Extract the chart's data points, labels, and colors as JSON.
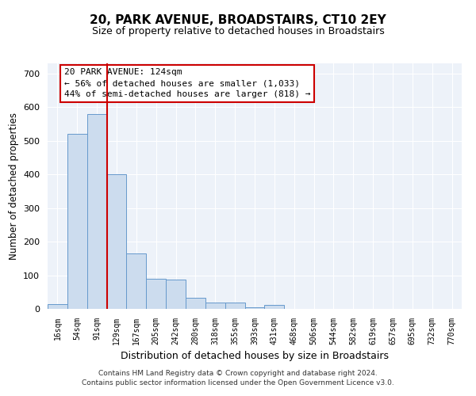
{
  "title": "20, PARK AVENUE, BROADSTAIRS, CT10 2EY",
  "subtitle": "Size of property relative to detached houses in Broadstairs",
  "xlabel": "Distribution of detached houses by size in Broadstairs",
  "ylabel": "Number of detached properties",
  "bin_labels": [
    "16sqm",
    "54sqm",
    "91sqm",
    "129sqm",
    "167sqm",
    "205sqm",
    "242sqm",
    "280sqm",
    "318sqm",
    "355sqm",
    "393sqm",
    "431sqm",
    "468sqm",
    "506sqm",
    "544sqm",
    "582sqm",
    "619sqm",
    "657sqm",
    "695sqm",
    "732sqm",
    "770sqm"
  ],
  "bar_heights": [
    15,
    520,
    580,
    400,
    165,
    90,
    87,
    33,
    18,
    20,
    5,
    12,
    0,
    0,
    0,
    0,
    0,
    0,
    0,
    0,
    0
  ],
  "bar_color": "#ccdcee",
  "bar_edge_color": "#6699cc",
  "annotation_text": "20 PARK AVENUE: 124sqm\n← 56% of detached houses are smaller (1,033)\n44% of semi-detached houses are larger (818) →",
  "annotation_box_color": "#ffffff",
  "annotation_box_edge": "#cc0000",
  "ylim": [
    0,
    730
  ],
  "yticks": [
    0,
    100,
    200,
    300,
    400,
    500,
    600,
    700
  ],
  "footer1": "Contains HM Land Registry data © Crown copyright and database right 2024.",
  "footer2": "Contains public sector information licensed under the Open Government Licence v3.0.",
  "bg_color": "#edf2f9",
  "grid_color": "#ffffff",
  "title_fontsize": 11,
  "subtitle_fontsize": 9
}
